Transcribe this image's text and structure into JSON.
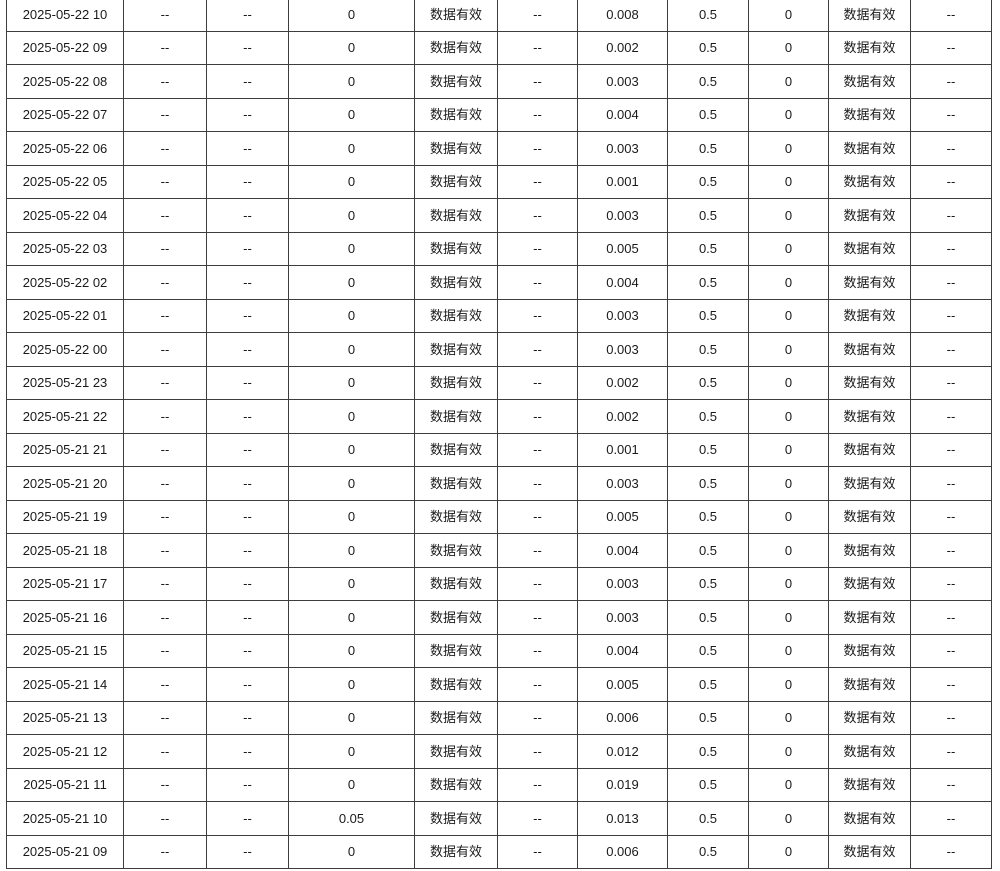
{
  "page": {
    "background": "#ffffff"
  },
  "colors": {
    "border": "#3d3d3d",
    "text": "#1a1a1a",
    "cell_background": "#ffffff"
  },
  "table": {
    "column_count": 11,
    "no_data_placeholder": "--",
    "status_valid_label": "数据有效",
    "rows": [
      [
        "2025-05-22 10",
        "--",
        "--",
        "0",
        "数据有效",
        "--",
        "0.008",
        "0.5",
        "0",
        "数据有效",
        "--"
      ],
      [
        "2025-05-22 09",
        "--",
        "--",
        "0",
        "数据有效",
        "--",
        "0.002",
        "0.5",
        "0",
        "数据有效",
        "--"
      ],
      [
        "2025-05-22 08",
        "--",
        "--",
        "0",
        "数据有效",
        "--",
        "0.003",
        "0.5",
        "0",
        "数据有效",
        "--"
      ],
      [
        "2025-05-22 07",
        "--",
        "--",
        "0",
        "数据有效",
        "--",
        "0.004",
        "0.5",
        "0",
        "数据有效",
        "--"
      ],
      [
        "2025-05-22 06",
        "--",
        "--",
        "0",
        "数据有效",
        "--",
        "0.003",
        "0.5",
        "0",
        "数据有效",
        "--"
      ],
      [
        "2025-05-22 05",
        "--",
        "--",
        "0",
        "数据有效",
        "--",
        "0.001",
        "0.5",
        "0",
        "数据有效",
        "--"
      ],
      [
        "2025-05-22 04",
        "--",
        "--",
        "0",
        "数据有效",
        "--",
        "0.003",
        "0.5",
        "0",
        "数据有效",
        "--"
      ],
      [
        "2025-05-22 03",
        "--",
        "--",
        "0",
        "数据有效",
        "--",
        "0.005",
        "0.5",
        "0",
        "数据有效",
        "--"
      ],
      [
        "2025-05-22 02",
        "--",
        "--",
        "0",
        "数据有效",
        "--",
        "0.004",
        "0.5",
        "0",
        "数据有效",
        "--"
      ],
      [
        "2025-05-22 01",
        "--",
        "--",
        "0",
        "数据有效",
        "--",
        "0.003",
        "0.5",
        "0",
        "数据有效",
        "--"
      ],
      [
        "2025-05-22 00",
        "--",
        "--",
        "0",
        "数据有效",
        "--",
        "0.003",
        "0.5",
        "0",
        "数据有效",
        "--"
      ],
      [
        "2025-05-21 23",
        "--",
        "--",
        "0",
        "数据有效",
        "--",
        "0.002",
        "0.5",
        "0",
        "数据有效",
        "--"
      ],
      [
        "2025-05-21 22",
        "--",
        "--",
        "0",
        "数据有效",
        "--",
        "0.002",
        "0.5",
        "0",
        "数据有效",
        "--"
      ],
      [
        "2025-05-21 21",
        "--",
        "--",
        "0",
        "数据有效",
        "--",
        "0.001",
        "0.5",
        "0",
        "数据有效",
        "--"
      ],
      [
        "2025-05-21 20",
        "--",
        "--",
        "0",
        "数据有效",
        "--",
        "0.003",
        "0.5",
        "0",
        "数据有效",
        "--"
      ],
      [
        "2025-05-21 19",
        "--",
        "--",
        "0",
        "数据有效",
        "--",
        "0.005",
        "0.5",
        "0",
        "数据有效",
        "--"
      ],
      [
        "2025-05-21 18",
        "--",
        "--",
        "0",
        "数据有效",
        "--",
        "0.004",
        "0.5",
        "0",
        "数据有效",
        "--"
      ],
      [
        "2025-05-21 17",
        "--",
        "--",
        "0",
        "数据有效",
        "--",
        "0.003",
        "0.5",
        "0",
        "数据有效",
        "--"
      ],
      [
        "2025-05-21 16",
        "--",
        "--",
        "0",
        "数据有效",
        "--",
        "0.003",
        "0.5",
        "0",
        "数据有效",
        "--"
      ],
      [
        "2025-05-21 15",
        "--",
        "--",
        "0",
        "数据有效",
        "--",
        "0.004",
        "0.5",
        "0",
        "数据有效",
        "--"
      ],
      [
        "2025-05-21 14",
        "--",
        "--",
        "0",
        "数据有效",
        "--",
        "0.005",
        "0.5",
        "0",
        "数据有效",
        "--"
      ],
      [
        "2025-05-21 13",
        "--",
        "--",
        "0",
        "数据有效",
        "--",
        "0.006",
        "0.5",
        "0",
        "数据有效",
        "--"
      ],
      [
        "2025-05-21 12",
        "--",
        "--",
        "0",
        "数据有效",
        "--",
        "0.012",
        "0.5",
        "0",
        "数据有效",
        "--"
      ],
      [
        "2025-05-21 11",
        "--",
        "--",
        "0",
        "数据有效",
        "--",
        "0.019",
        "0.5",
        "0",
        "数据有效",
        "--"
      ],
      [
        "2025-05-21 10",
        "--",
        "--",
        "0.05",
        "数据有效",
        "--",
        "0.013",
        "0.5",
        "0",
        "数据有效",
        "--"
      ],
      [
        "2025-05-21 09",
        "--",
        "--",
        "0",
        "数据有效",
        "--",
        "0.006",
        "0.5",
        "0",
        "数据有效",
        "--"
      ]
    ]
  }
}
